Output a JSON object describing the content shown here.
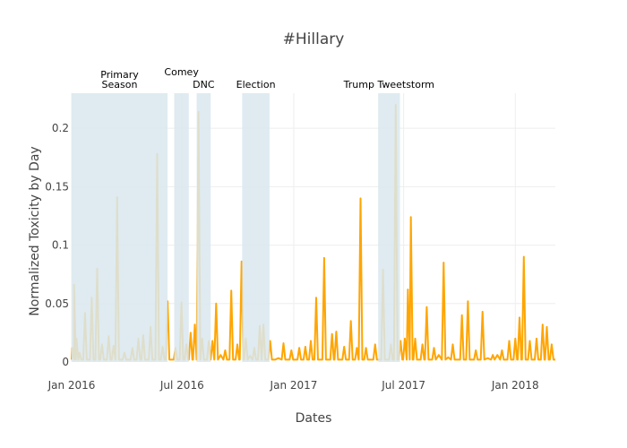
{
  "chart_data": {
    "type": "line",
    "title": "#Hillary",
    "xlabel": "Dates",
    "ylabel": "Normalized Toxicity by Day",
    "xlim": [
      "2016-01-01",
      "2018-03-08"
    ],
    "ylim": [
      0,
      0.23
    ],
    "x_ticks": [
      {
        "date": "2016-01-01",
        "label": "Jan 2016"
      },
      {
        "date": "2016-07-01",
        "label": "Jul 2016"
      },
      {
        "date": "2017-01-01",
        "label": "Jan 2017"
      },
      {
        "date": "2017-07-01",
        "label": "Jul 2017"
      },
      {
        "date": "2018-01-01",
        "label": "Jan 2018"
      }
    ],
    "y_ticks": [
      {
        "value": 0,
        "label": "0"
      },
      {
        "value": 0.05,
        "label": "0.05"
      },
      {
        "value": 0.1,
        "label": "0.1"
      },
      {
        "value": 0.15,
        "label": "0.15"
      },
      {
        "value": 0.2,
        "label": "0.2"
      }
    ],
    "grid": true,
    "line_color": "#FFA500",
    "band_color": "#d9e8ef",
    "bands": [
      {
        "label": "Primary\nSeason",
        "start": "2016-01-01",
        "end": "2016-06-07"
      },
      {
        "label": "Comey",
        "start": "2016-06-18",
        "end": "2016-07-12"
      },
      {
        "label": "DNC",
        "start": "2016-07-25",
        "end": "2016-08-17"
      },
      {
        "label": "Election",
        "start": "2016-10-08",
        "end": "2016-11-22"
      },
      {
        "label": "Trump Tweetstorm",
        "start": "2017-05-20",
        "end": "2017-06-25"
      }
    ],
    "series": [
      {
        "color": "#FFA500",
        "peaks": [
          [
            "2016-01-02",
            0.012
          ],
          [
            "2016-01-05",
            0.066
          ],
          [
            "2016-01-09",
            0.02
          ],
          [
            "2016-01-14",
            0.008
          ],
          [
            "2016-01-23",
            0.042
          ],
          [
            "2016-02-03",
            0.055
          ],
          [
            "2016-02-12",
            0.08
          ],
          [
            "2016-02-20",
            0.015
          ],
          [
            "2016-03-02",
            0.022
          ],
          [
            "2016-03-10",
            0.014
          ],
          [
            "2016-03-16",
            0.141
          ],
          [
            "2016-03-28",
            0.008
          ],
          [
            "2016-04-10",
            0.012
          ],
          [
            "2016-04-20",
            0.02
          ],
          [
            "2016-04-28",
            0.023
          ],
          [
            "2016-05-10",
            0.03
          ],
          [
            "2016-05-21",
            0.178
          ],
          [
            "2016-05-30",
            0.013
          ],
          [
            "2016-06-07",
            0.052
          ],
          [
            "2016-06-20",
            0.012
          ],
          [
            "2016-06-30",
            0.051
          ],
          [
            "2016-07-08",
            0.015
          ],
          [
            "2016-07-15",
            0.025
          ],
          [
            "2016-07-22",
            0.032
          ],
          [
            "2016-07-28",
            0.214
          ],
          [
            "2016-08-03",
            0.02
          ],
          [
            "2016-08-14",
            0.018
          ],
          [
            "2016-08-20",
            0.018
          ],
          [
            "2016-08-26",
            0.05
          ],
          [
            "2016-09-10",
            0.01
          ],
          [
            "2016-09-20",
            0.061
          ],
          [
            "2016-09-30",
            0.015
          ],
          [
            "2016-10-07",
            0.086
          ],
          [
            "2016-10-14",
            0.02
          ],
          [
            "2016-10-28",
            0.012
          ],
          [
            "2016-11-06",
            0.031
          ],
          [
            "2016-11-12",
            0.032
          ],
          [
            "2016-11-23",
            0.018
          ],
          [
            "2016-12-15",
            0.016
          ],
          [
            "2016-12-28",
            0.01
          ],
          [
            "2017-01-10",
            0.012
          ],
          [
            "2017-01-20",
            0.013
          ],
          [
            "2017-01-29",
            0.018
          ],
          [
            "2017-02-07",
            0.055
          ],
          [
            "2017-02-20",
            0.089
          ],
          [
            "2017-03-05",
            0.024
          ],
          [
            "2017-03-12",
            0.026
          ],
          [
            "2017-03-25",
            0.013
          ],
          [
            "2017-04-05",
            0.035
          ],
          [
            "2017-04-15",
            0.012
          ],
          [
            "2017-04-21",
            0.14
          ],
          [
            "2017-04-30",
            0.012
          ],
          [
            "2017-05-15",
            0.015
          ],
          [
            "2017-05-28",
            0.079
          ],
          [
            "2017-06-10",
            0.015
          ],
          [
            "2017-06-18",
            0.22
          ],
          [
            "2017-06-26",
            0.018
          ],
          [
            "2017-07-03",
            0.02
          ],
          [
            "2017-07-08",
            0.062
          ],
          [
            "2017-07-13",
            0.124
          ],
          [
            "2017-07-20",
            0.02
          ],
          [
            "2017-08-01",
            0.015
          ],
          [
            "2017-08-08",
            0.047
          ],
          [
            "2017-08-20",
            0.012
          ],
          [
            "2017-09-05",
            0.085
          ],
          [
            "2017-09-20",
            0.015
          ],
          [
            "2017-10-05",
            0.04
          ],
          [
            "2017-10-15",
            0.052
          ],
          [
            "2017-10-28",
            0.01
          ],
          [
            "2017-11-08",
            0.043
          ],
          [
            "2017-11-25",
            0.006
          ],
          [
            "2017-12-10",
            0.01
          ],
          [
            "2017-12-22",
            0.018
          ],
          [
            "2018-01-01",
            0.02
          ],
          [
            "2018-01-08",
            0.038
          ],
          [
            "2018-01-15",
            0.09
          ],
          [
            "2018-01-25",
            0.018
          ],
          [
            "2018-02-05",
            0.02
          ],
          [
            "2018-02-15",
            0.032
          ],
          [
            "2018-02-22",
            0.03
          ],
          [
            "2018-03-02",
            0.015
          ]
        ]
      }
    ]
  }
}
